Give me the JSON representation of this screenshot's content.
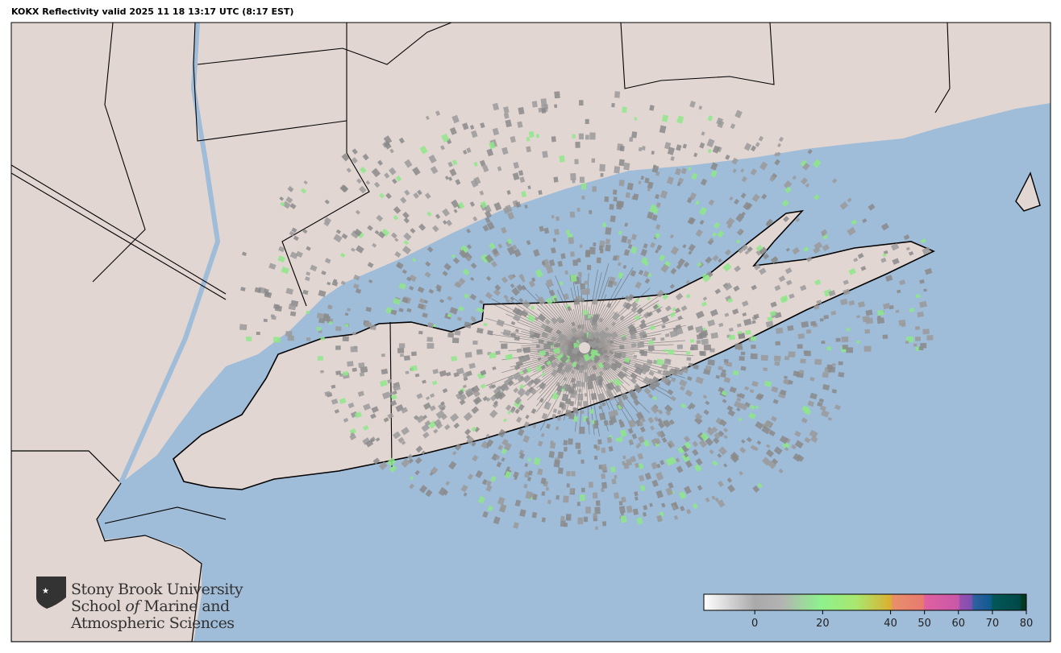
{
  "title": "KOKX Reflectivity valid 2025 11 18 13:17 UTC (8:17 EST)",
  "logo": {
    "line1": "Stony Brook University",
    "line2_a": "School ",
    "line2_b": "of",
    "line2_c": " Marine and",
    "line3": "Atmospheric Sciences"
  },
  "colors": {
    "land": "#e2d6d3",
    "water": "#9fbcd8",
    "border": "#000000"
  },
  "colorbar": {
    "range": [
      -15,
      80
    ],
    "ticks": [
      {
        "value": 0,
        "label": "0"
      },
      {
        "value": 20,
        "label": "20"
      },
      {
        "value": 40,
        "label": "40"
      },
      {
        "value": 50,
        "label": "50"
      },
      {
        "value": 60,
        "label": "60"
      },
      {
        "value": 70,
        "label": "70"
      },
      {
        "value": 80,
        "label": "80"
      }
    ]
  }
}
